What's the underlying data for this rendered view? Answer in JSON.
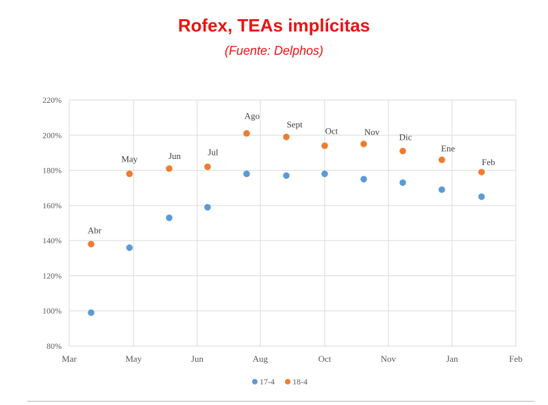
{
  "chart_data": {
    "type": "scatter",
    "title": "Rofex, TEAs implícitas",
    "subtitle": "(Fuente: Delphos)",
    "xlabel": "",
    "ylabel": "",
    "x_ticks": [
      "Mar",
      "May",
      "Jun",
      "Aug",
      "Oct",
      "Nov",
      "Jan",
      "Feb"
    ],
    "y_ticks": [
      "80%",
      "100%",
      "120%",
      "140%",
      "160%",
      "180%",
      "200%",
      "220%"
    ],
    "ylim": [
      80,
      220
    ],
    "grid": true,
    "legend_position": "bottom",
    "contracts": [
      "Abr",
      "May",
      "Jun",
      "Jul",
      "Ago",
      "Sept",
      "Oct",
      "Nov",
      "Dic",
      "Ene",
      "Feb"
    ],
    "series": [
      {
        "name": "17-4",
        "color": "#5b9bd5",
        "values": [
          99,
          136,
          153,
          159,
          178,
          177,
          178,
          175,
          173,
          169,
          165
        ]
      },
      {
        "name": "18-4",
        "color": "#ed7d31",
        "values": [
          138,
          178,
          181,
          182,
          201,
          199,
          194,
          195,
          191,
          186,
          179
        ]
      }
    ]
  }
}
